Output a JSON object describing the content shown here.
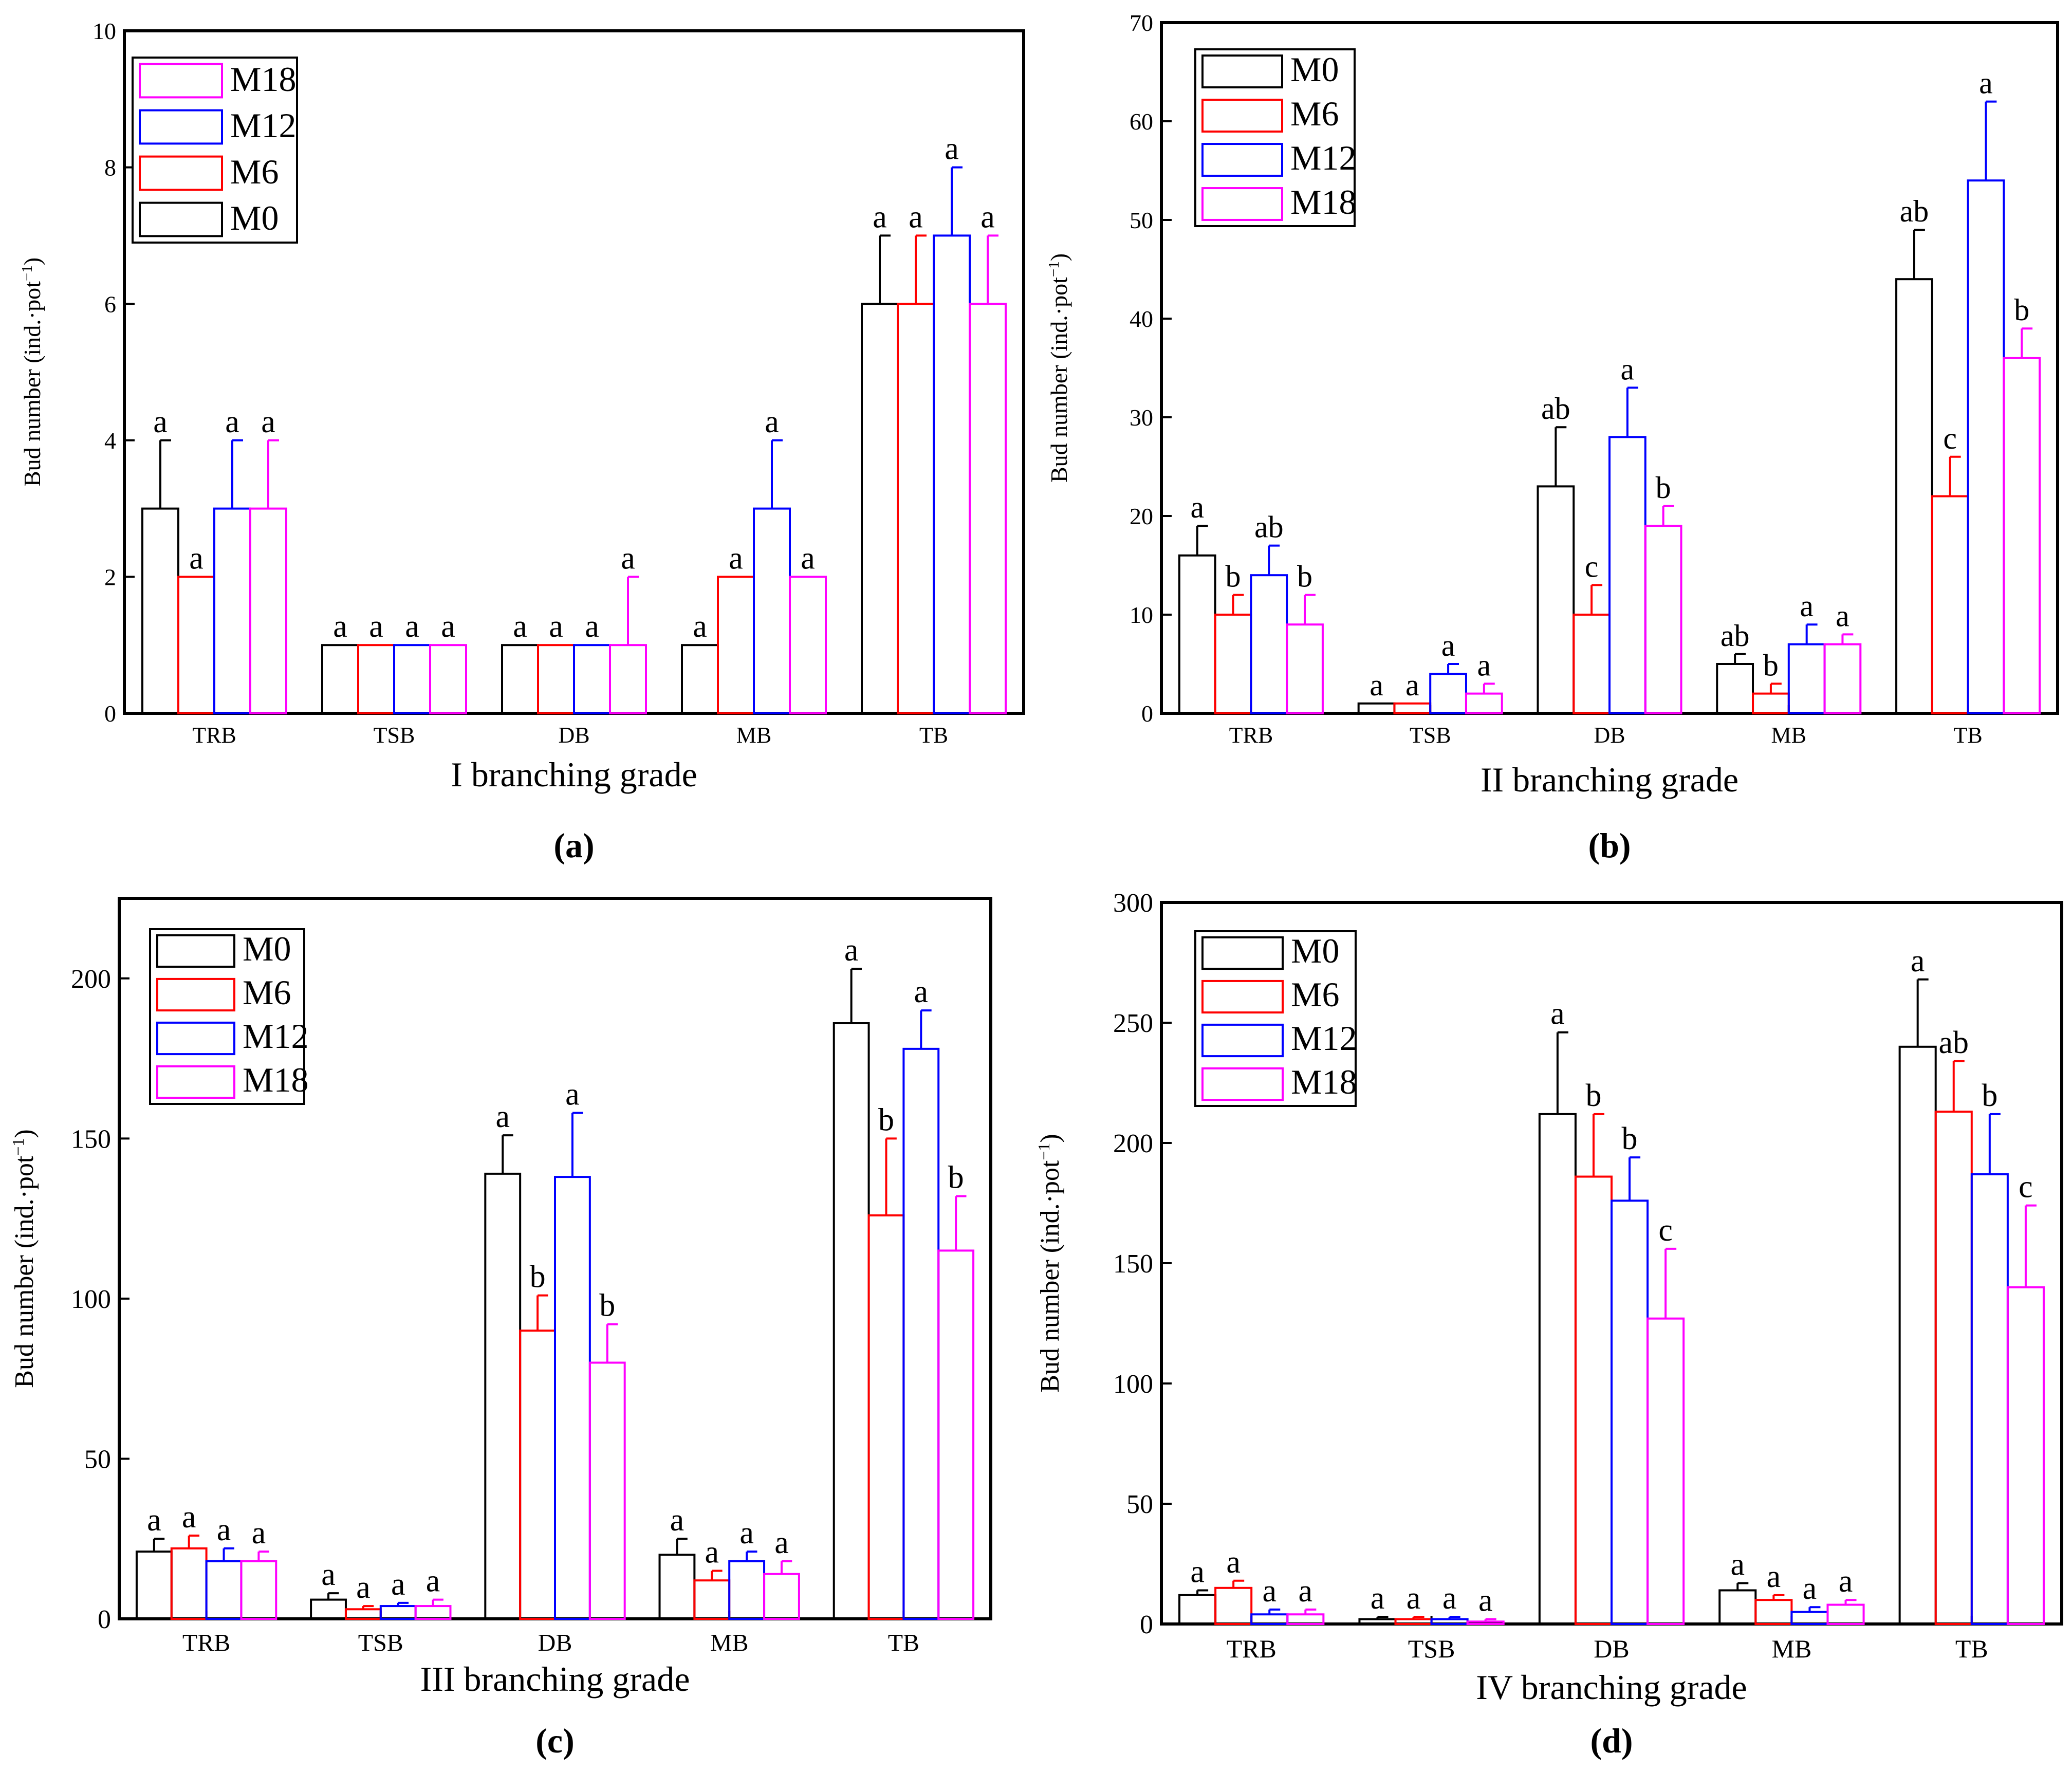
{
  "colors": {
    "M0": "#000000",
    "M6": "#ff0000",
    "M12": "#0000ff",
    "M18": "#ff00ff"
  },
  "ylabel_text": "Bud number (ind.·pot",
  "ylabel_sup": "−1",
  "ylabel_close": ")",
  "chart_data": [
    {
      "type": "bar",
      "panel_label": "(a)",
      "xlabel": "I  branching grade",
      "ylabel": "Bud number (ind.·pot−1)",
      "categories": [
        "TRB",
        "TSB",
        "DB",
        "MB",
        "TB"
      ],
      "ylim": [
        0,
        10
      ],
      "yticks": [
        0,
        2,
        4,
        6,
        8,
        10
      ],
      "legend_order": [
        "M18",
        "M12",
        "M6",
        "M0"
      ],
      "series": [
        {
          "name": "M0",
          "values": [
            3,
            1,
            1,
            1,
            6
          ],
          "errors": [
            1,
            0,
            0,
            0,
            1
          ],
          "letters": [
            "a",
            "a",
            "a",
            "a",
            "a"
          ]
        },
        {
          "name": "M6",
          "values": [
            2,
            1,
            1,
            2,
            6
          ],
          "errors": [
            0,
            0,
            0,
            0,
            1
          ],
          "letters": [
            "a",
            "a",
            "a",
            "a",
            "a"
          ]
        },
        {
          "name": "M12",
          "values": [
            3,
            1,
            1,
            3,
            7
          ],
          "errors": [
            1,
            0,
            0,
            1,
            1
          ],
          "letters": [
            "a",
            "a",
            "a",
            "a",
            "a"
          ]
        },
        {
          "name": "M18",
          "values": [
            3,
            1,
            1,
            2,
            6
          ],
          "errors": [
            1,
            0,
            1,
            0,
            1
          ],
          "letters": [
            "a",
            "a",
            "a",
            "a",
            "a"
          ]
        }
      ]
    },
    {
      "type": "bar",
      "panel_label": "(b)",
      "xlabel": "II  branching grade",
      "ylabel": "Bud number (ind.·pot−1)",
      "categories": [
        "TRB",
        "TSB",
        "DB",
        "MB",
        "TB"
      ],
      "ylim": [
        0,
        70
      ],
      "yticks": [
        0,
        10,
        20,
        30,
        40,
        50,
        60,
        70
      ],
      "legend_order": [
        "M0",
        "M6",
        "M12",
        "M18"
      ],
      "series": [
        {
          "name": "M0",
          "values": [
            16,
            1,
            23,
            5,
            44
          ],
          "errors": [
            3,
            0,
            6,
            1,
            5
          ],
          "letters": [
            "a",
            "a",
            "ab",
            "ab",
            "ab"
          ]
        },
        {
          "name": "M6",
          "values": [
            10,
            1,
            10,
            2,
            22
          ],
          "errors": [
            2,
            0,
            3,
            1,
            4
          ],
          "letters": [
            "b",
            "a",
            "c",
            "b",
            "c"
          ]
        },
        {
          "name": "M12",
          "values": [
            14,
            4,
            28,
            7,
            54
          ],
          "errors": [
            3,
            1,
            5,
            2,
            8
          ],
          "letters": [
            "ab",
            "a",
            "a",
            "a",
            "a"
          ]
        },
        {
          "name": "M18",
          "values": [
            9,
            2,
            19,
            7,
            36
          ],
          "errors": [
            3,
            1,
            2,
            1,
            3
          ],
          "letters": [
            "b",
            "a",
            "b",
            "a",
            "b"
          ]
        }
      ]
    },
    {
      "type": "bar",
      "panel_label": "(c)",
      "xlabel": "III  branching grade",
      "ylabel": "Bud number (ind.·pot−1)",
      "categories": [
        "TRB",
        "TSB",
        "DB",
        "MB",
        "TB"
      ],
      "ylim": [
        0,
        225
      ],
      "yticks": [
        0,
        50,
        100,
        150,
        200
      ],
      "legend_order": [
        "M0",
        "M6",
        "M12",
        "M18"
      ],
      "series": [
        {
          "name": "M0",
          "values": [
            21,
            6,
            139,
            20,
            186
          ],
          "errors": [
            4,
            2,
            12,
            5,
            17
          ],
          "letters": [
            "a",
            "a",
            "a",
            "a",
            "a"
          ]
        },
        {
          "name": "M6",
          "values": [
            22,
            3,
            90,
            12,
            126
          ],
          "errors": [
            4,
            1,
            11,
            3,
            24
          ],
          "letters": [
            "a",
            "a",
            "b",
            "a",
            "b"
          ]
        },
        {
          "name": "M12",
          "values": [
            18,
            4,
            138,
            18,
            178
          ],
          "errors": [
            4,
            1,
            20,
            3,
            12
          ],
          "letters": [
            "a",
            "a",
            "a",
            "a",
            "a"
          ]
        },
        {
          "name": "M18",
          "values": [
            18,
            4,
            80,
            14,
            115
          ],
          "errors": [
            3,
            2,
            12,
            4,
            17
          ],
          "letters": [
            "a",
            "a",
            "b",
            "a",
            "b"
          ]
        }
      ]
    },
    {
      "type": "bar",
      "panel_label": "(d)",
      "xlabel": "IV  branching grade",
      "ylabel": "Bud number (ind.·pot−1)",
      "categories": [
        "TRB",
        "TSB",
        "DB",
        "MB",
        "TB"
      ],
      "ylim": [
        0,
        300
      ],
      "yticks": [
        0,
        50,
        100,
        150,
        200,
        250,
        300
      ],
      "legend_order": [
        "M0",
        "M6",
        "M12",
        "M18"
      ],
      "series": [
        {
          "name": "M0",
          "values": [
            12,
            2,
            212,
            14,
            240
          ],
          "errors": [
            2,
            1,
            34,
            3,
            28
          ],
          "letters": [
            "a",
            "a",
            "a",
            "a",
            "a"
          ]
        },
        {
          "name": "M6",
          "values": [
            15,
            2,
            186,
            10,
            213
          ],
          "errors": [
            3,
            1,
            26,
            2,
            21
          ],
          "letters": [
            "a",
            "a",
            "b",
            "a",
            "ab"
          ]
        },
        {
          "name": "M12",
          "values": [
            4,
            2,
            176,
            5,
            187
          ],
          "errors": [
            2,
            1,
            18,
            2,
            25
          ],
          "letters": [
            "a",
            "a",
            "b",
            "a",
            "b"
          ]
        },
        {
          "name": "M18",
          "values": [
            4,
            1,
            127,
            8,
            140
          ],
          "errors": [
            2,
            1,
            29,
            2,
            34
          ],
          "letters": [
            "a",
            "a",
            "c",
            "a",
            "c"
          ]
        }
      ]
    }
  ]
}
